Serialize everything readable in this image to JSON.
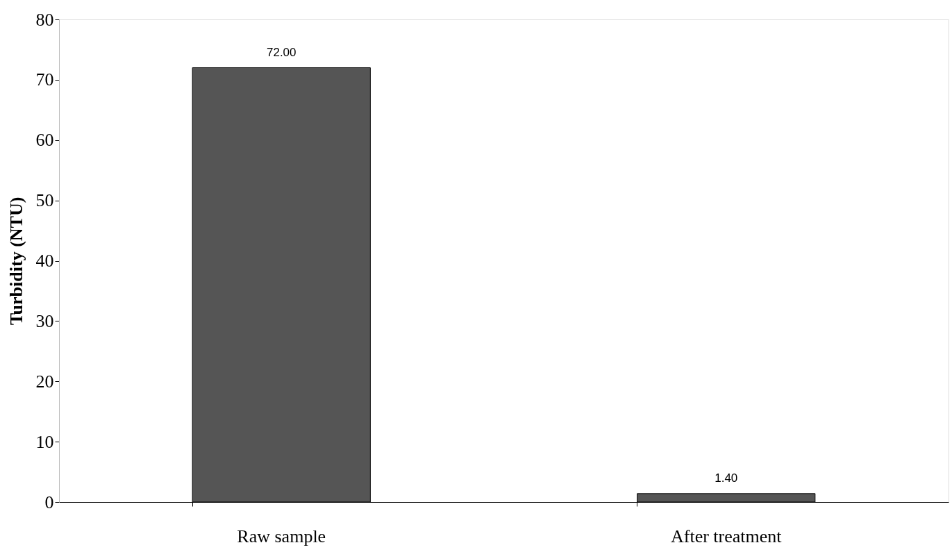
{
  "chart_data": {
    "type": "bar",
    "ylabel": "Turbidity (NTU)",
    "categories": [
      "Raw sample",
      "After treatment"
    ],
    "values": [
      72.0,
      1.4
    ],
    "value_labels": [
      "72.00",
      "1.40"
    ],
    "color": "#555555",
    "ylim": [
      0,
      80
    ],
    "yticks": [
      0,
      10,
      20,
      30,
      40,
      50,
      60,
      70,
      80
    ],
    "grid": false
  }
}
